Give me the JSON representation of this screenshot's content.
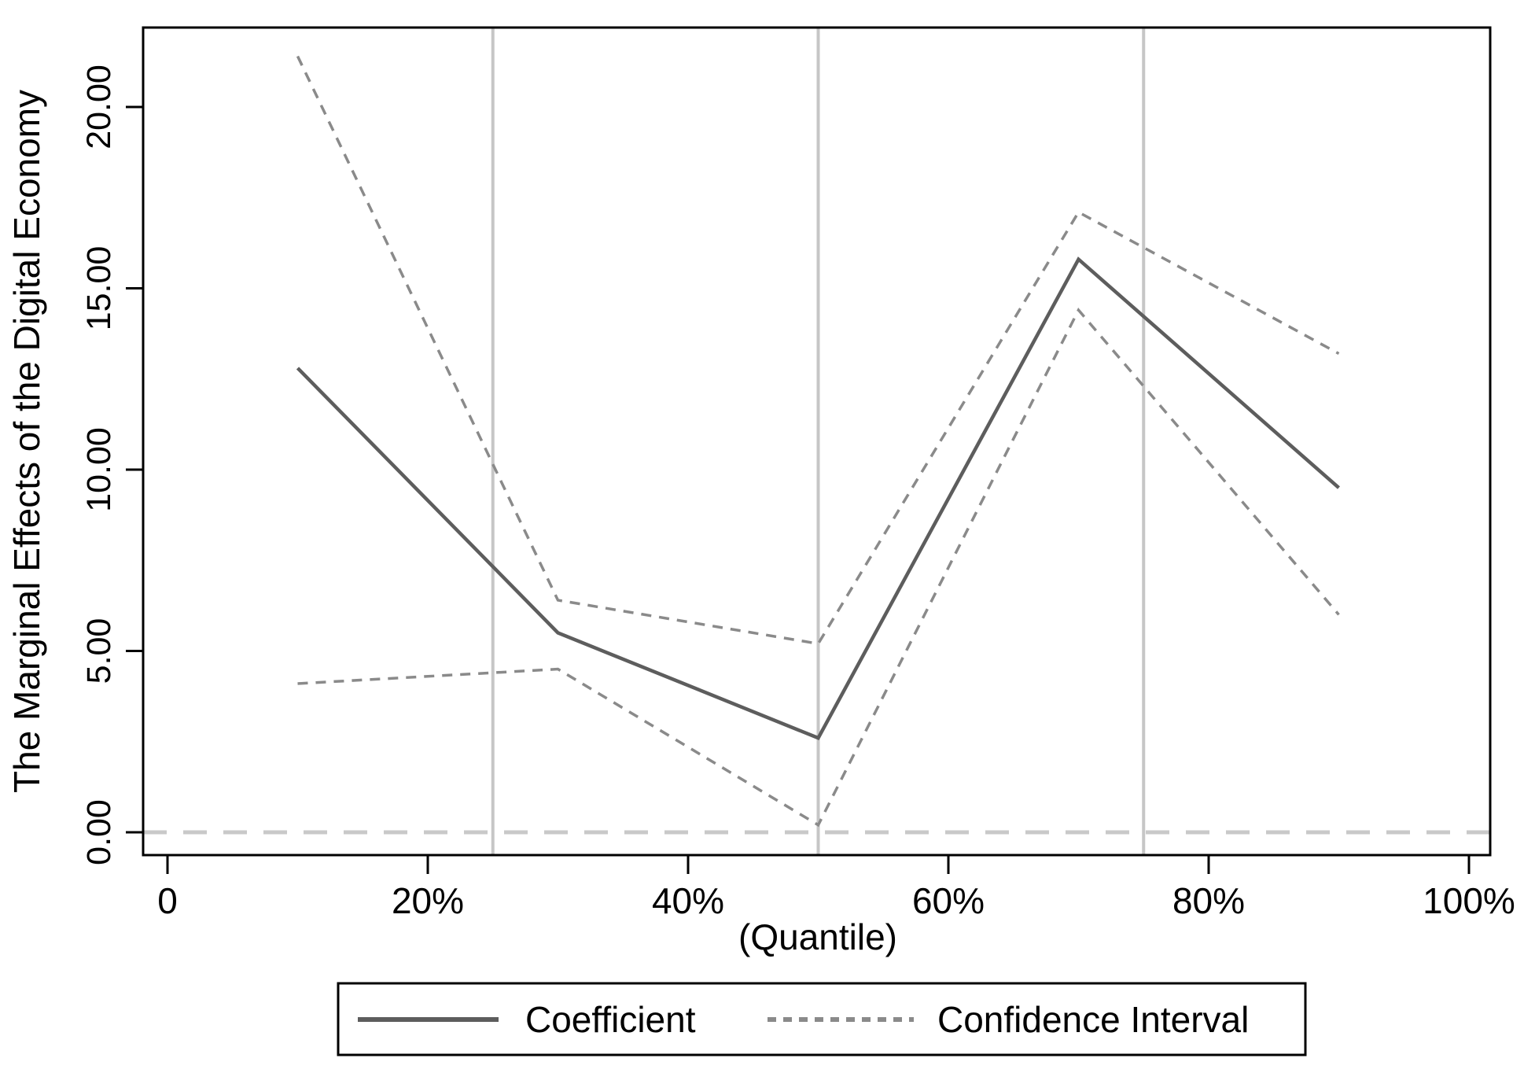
{
  "figure": {
    "background": "#ffffff"
  },
  "chart_data": {
    "type": "line",
    "title": "",
    "xlabel": "(Quantile)",
    "ylabel": "The Marginal Effects of the Digital Economy",
    "x": [
      10,
      30,
      50,
      70,
      90
    ],
    "series": [
      {
        "name": "Coefficient",
        "style": "solid",
        "values": [
          12.8,
          5.5,
          2.6,
          15.8,
          9.5
        ]
      },
      {
        "name": "Confidence Interval (upper bound)",
        "style": "dashed",
        "values": [
          21.4,
          6.4,
          5.2,
          17.1,
          13.2
        ]
      },
      {
        "name": "Confidence Interval (lower bound)",
        "style": "dashed",
        "values": [
          4.1,
          4.5,
          0.2,
          14.4,
          6.0
        ]
      }
    ],
    "x_ticks": [
      {
        "value": 0,
        "label": "0"
      },
      {
        "value": 20,
        "label": "20%"
      },
      {
        "value": 40,
        "label": "40%"
      },
      {
        "value": 60,
        "label": "60%"
      },
      {
        "value": 80,
        "label": "80%"
      },
      {
        "value": 100,
        "label": "100%"
      }
    ],
    "y_ticks": [
      {
        "value": 0,
        "label": "0.00"
      },
      {
        "value": 5,
        "label": "5.00"
      },
      {
        "value": 10,
        "label": "10.00"
      },
      {
        "value": 15,
        "label": "15.00"
      },
      {
        "value": 20,
        "label": "20.00"
      }
    ],
    "x_gridlines": [
      25,
      50,
      75
    ],
    "reference_line_y": 0,
    "xlim": [
      -1.9,
      101.6
    ],
    "ylim": [
      -0.65,
      22.2
    ],
    "grid": "vertical-only",
    "legend_position": "bottom",
    "legend": [
      {
        "label": "Coefficient",
        "style": "solid"
      },
      {
        "label": "Confidence Interval",
        "style": "dashed"
      }
    ],
    "colors": {
      "coefficient_line": "#5d5d5d",
      "ci_line": "#8a8a8a",
      "gridline": "#c6c6c6",
      "zero_line": "#c9c9c9",
      "axis": "#000000",
      "text": "#000000",
      "background": "#ffffff"
    }
  }
}
